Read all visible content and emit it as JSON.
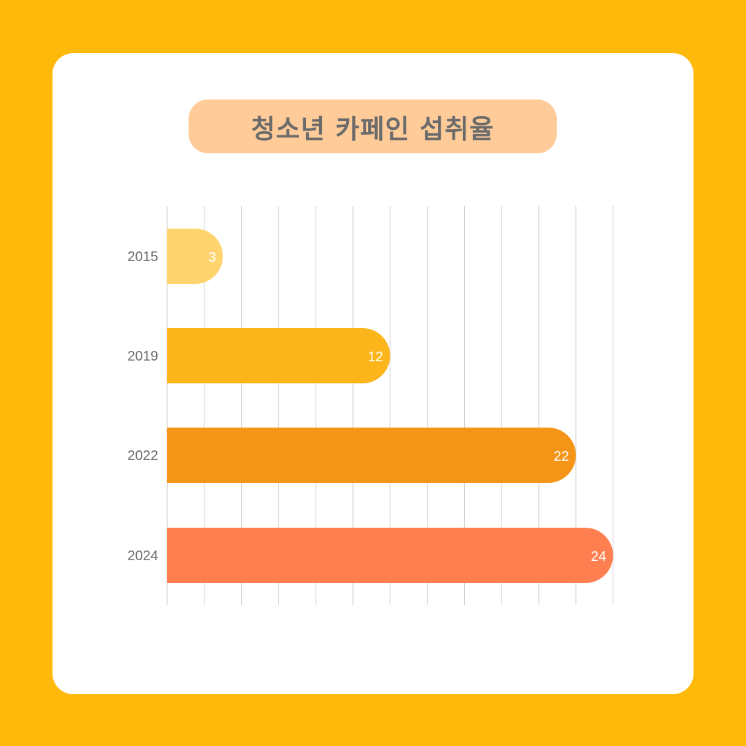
{
  "title": "청소년 카페인 섭취율",
  "colors": {
    "background": "#FFB90B",
    "card": "#FFFFFF",
    "title_pill": "#FFCC99",
    "title_text": "#6B6B6B",
    "grid": "#CCCCCC",
    "tick_label": "#6B6B6B",
    "bar_label": "#FFFFFF"
  },
  "chart_data": {
    "type": "bar",
    "orientation": "horizontal",
    "title": "청소년 카페인 섭취율",
    "categories": [
      "2015",
      "2019",
      "2022",
      "2024"
    ],
    "values": [
      3,
      12,
      22,
      24
    ],
    "bar_colors": [
      "#FFD36E",
      "#FCB51B",
      "#F59518",
      "#FF7F50"
    ],
    "data_labels": [
      "3",
      "12",
      "22",
      "24"
    ],
    "xlim": [
      0,
      24
    ],
    "grid_step": 2,
    "grid": true,
    "xlabel": "",
    "ylabel": ""
  }
}
